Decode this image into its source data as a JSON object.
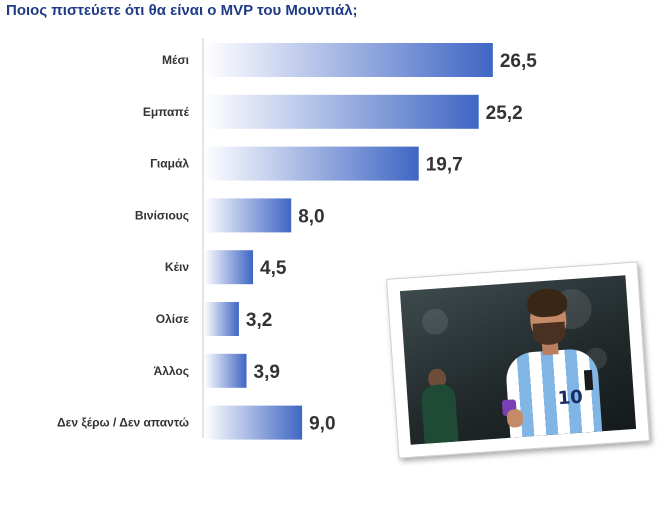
{
  "title": "Ποιος πιστεύετε ότι θα είναι ο MVP του Μουντιάλ;",
  "colors": {
    "bar_start": "#ffffff",
    "bar_end": "#3f66c4",
    "label_text": "#333333",
    "value_text": "#333333",
    "axis": "#c8c8c8",
    "title_text": "#1f3b87"
  },
  "photo": {
    "icon": "football-player-photo"
  },
  "chart_data": {
    "type": "bar",
    "orientation": "horizontal",
    "title": "Ποιος πιστεύετε ότι θα είναι ο MVP του Μουντιάλ;",
    "categories": [
      "Μέσι",
      "Εμπαπέ",
      "Γιαμάλ",
      "Βινίσιους",
      "Κέιν",
      "Ολίσε",
      "Άλλος",
      "Δεν ξέρω / Δεν απαντώ"
    ],
    "value_labels": [
      "26,5",
      "25,2",
      "19,7",
      "8,0",
      "4,5",
      "3,2",
      "3,9",
      "9,0"
    ],
    "values": [
      26.5,
      25.2,
      19.7,
      8.0,
      4.5,
      3.2,
      3.9,
      9.0
    ],
    "xlim": [
      0,
      30
    ],
    "grid": false,
    "legend": "none"
  }
}
